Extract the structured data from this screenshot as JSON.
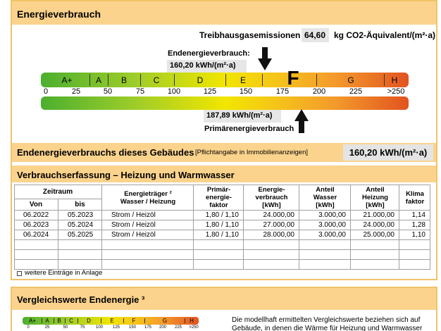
{
  "energy": {
    "title": "Energieverbrauch",
    "emissions_label": "Treibhausgasemissionen",
    "emissions_value": "64,60",
    "emissions_unit": "kg CO2-Äquivalent/(m²·a)",
    "final_label": "Endenergieverbrauch:",
    "final_value": "160,20 kWh/(m²·a)",
    "primary_value": "187,89 kWh/(m²·a)",
    "primary_label": "Primärenergieverbrauch",
    "classes": [
      "A+",
      "A",
      "B",
      "C",
      "D",
      "E",
      "F",
      "G",
      "H"
    ],
    "scale": [
      "0",
      "25",
      "50",
      "75",
      "100",
      "125",
      "150",
      "175",
      "200",
      "225",
      ">250"
    ]
  },
  "building": {
    "label": "Endenergieverbrauchs dieses Gebäudes",
    "note": "[Pflichtangabe in Immobilienanzeigen]",
    "value": "160,20 kWh/(m²·a)"
  },
  "consumption": {
    "title": "Verbrauchserfassung – Heizung und Warmwasser",
    "table": {
      "period": "Zeitraum",
      "from": "Von",
      "to": "bis",
      "columns": [
        [
          "Energieträger ²",
          "Wasser / Heizung"
        ],
        [
          "Primär-",
          "energie-",
          "faktor"
        ],
        [
          "Energie-",
          "verbrauch",
          "[kWh]"
        ],
        [
          "Anteil",
          "Wasser",
          "[kWh]"
        ],
        [
          "Anteil",
          "Heizung",
          "[kWh]"
        ],
        [
          "Klima",
          "faktor"
        ]
      ],
      "rows": [
        [
          "06.2022",
          "05.2023",
          "Strom / Heizöl",
          "1,80 / 1,10",
          "24.000,00",
          "3.000,00",
          "21.000,00",
          "1,14"
        ],
        [
          "06.2023",
          "05.2024",
          "Strom / Heizöl",
          "1,80 / 1,10",
          "27.000,00",
          "3.000,00",
          "24.000,00",
          "1,28"
        ],
        [
          "06.2024",
          "05.2025",
          "Strom / Heizöl",
          "1,80 / 1,10",
          "28.000,00",
          "3.000,00",
          "25.000,00",
          "1,10"
        ]
      ]
    },
    "footnote": "weitere Einträge in Anlage"
  },
  "comparison": {
    "title": "Vergleichswerte Endenergie ³",
    "text": [
      "Die modellhaft ermittelten Vergleichswerte beziehen sich auf",
      "Gebäude, in denen die Wärme für Heizung und Warmwasser"
    ]
  }
}
